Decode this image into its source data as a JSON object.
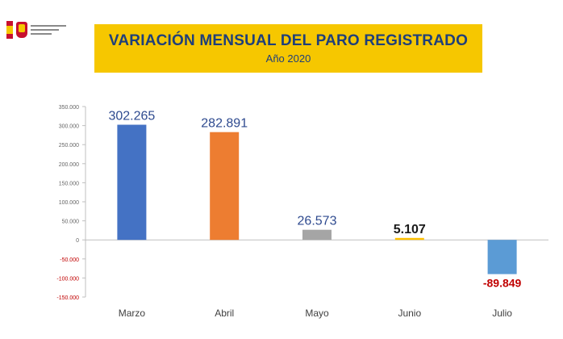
{
  "header": {
    "title": "VARIACIÓN MENSUAL DEL PARO REGISTRADO",
    "subtitle": "Año 2020"
  },
  "colors": {
    "banner": "#f6c700",
    "title_text": "#1f3f7a"
  },
  "chart_data": {
    "type": "bar",
    "title": "VARIACIÓN MENSUAL DEL PARO REGISTRADO",
    "subtitle": "Año 2020",
    "categories": [
      "Marzo",
      "Abril",
      "Mayo",
      "Junio",
      "Julio"
    ],
    "values": [
      302265,
      282891,
      26573,
      5107,
      -89849
    ],
    "data_labels": [
      "302.265",
      "282.891",
      "26.573",
      "5.107",
      "-89.849"
    ],
    "bar_colors": [
      "#4472c4",
      "#ed7d31",
      "#a5a5a5",
      "#ffc000",
      "#5b9bd5"
    ],
    "label_colors": [
      "#2e4a8f",
      "#2e4a8f",
      "#2e4a8f",
      "#1a1a1a",
      "#c00000"
    ],
    "ylim": [
      -150000,
      350000
    ],
    "yticks": [
      350000,
      300000,
      250000,
      200000,
      150000,
      100000,
      50000,
      0,
      -50000,
      -100000,
      -150000
    ],
    "ytick_labels": [
      "350.000",
      "300.000",
      "250.000",
      "200.000",
      "150.000",
      "100.000",
      "50.000",
      "0",
      "-50.000",
      "-100.000",
      "-150.000"
    ],
    "ytick_colors_positive": "#666666",
    "ytick_colors_negative": "#c00000",
    "grid": false,
    "xlabel": "",
    "ylabel": ""
  }
}
